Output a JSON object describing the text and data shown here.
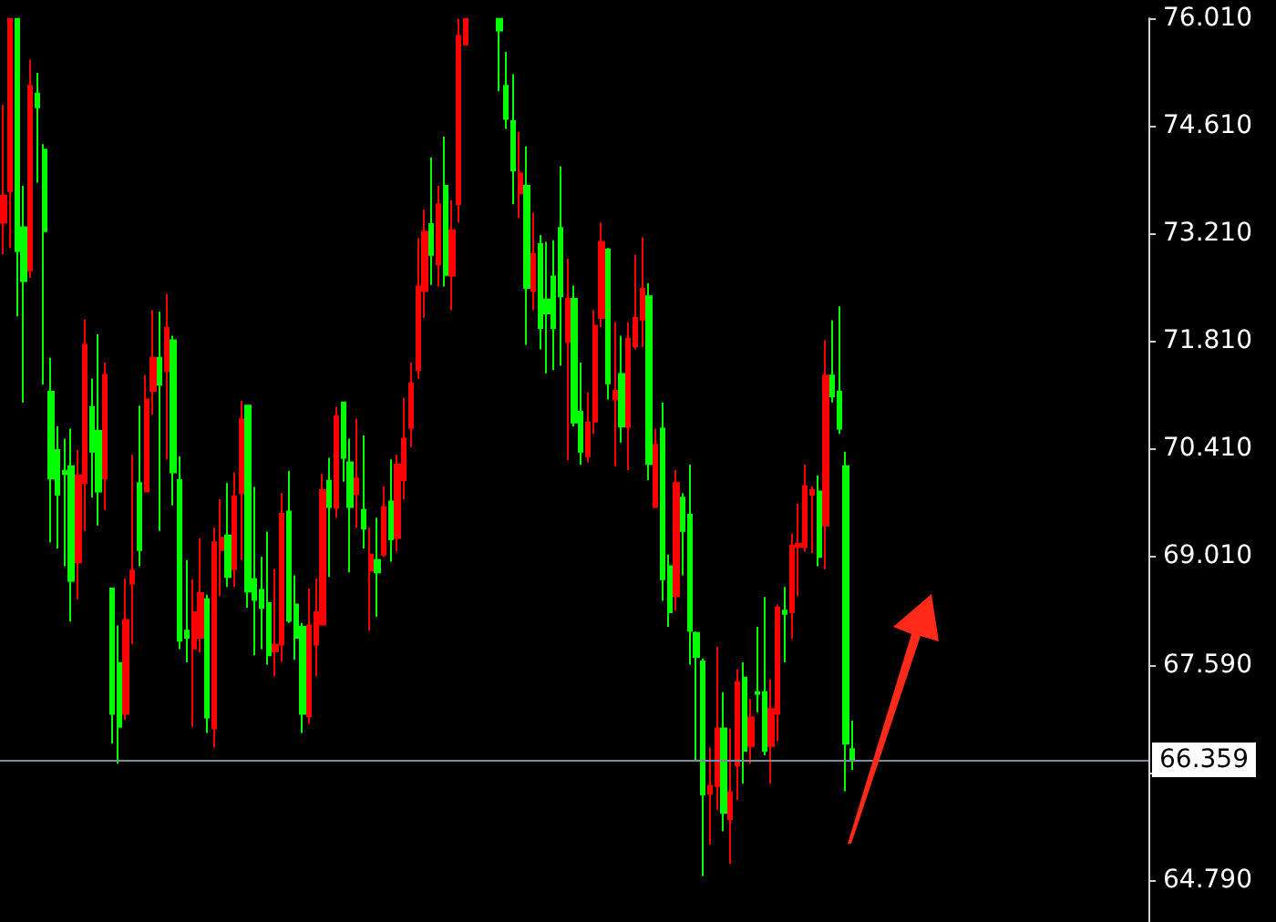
{
  "chart_data": {
    "type": "candlestick",
    "categories": [
      null,
      null,
      null,
      null,
      null,
      null,
      null,
      null,
      null,
      null,
      null,
      null,
      null,
      null,
      null,
      null,
      null,
      null,
      null,
      null,
      null,
      null,
      null,
      null,
      null,
      null,
      null,
      null,
      null,
      null,
      null,
      null,
      null,
      null,
      null,
      null,
      null,
      null,
      null,
      null,
      null,
      null,
      null,
      null,
      null,
      null,
      null,
      null,
      null,
      null,
      null,
      null,
      null,
      null,
      null,
      null,
      null,
      null,
      null,
      null,
      null,
      null,
      null,
      null,
      null,
      null,
      null,
      null,
      null,
      null,
      null,
      null,
      null,
      null,
      null,
      null,
      null,
      null,
      null,
      null,
      null,
      null,
      null,
      null,
      null,
      null,
      null,
      null,
      null,
      null,
      null,
      null,
      null,
      null,
      null,
      null,
      null,
      null,
      null,
      null,
      null,
      null,
      null,
      null,
      null,
      null,
      null,
      null,
      null,
      null,
      null,
      null,
      null,
      null,
      null,
      null,
      null,
      null,
      null,
      null,
      null,
      null,
      null,
      null,
      null,
      null,
      null,
      null,
      null,
      null,
      null,
      null,
      null,
      null,
      null,
      null,
      null,
      null,
      null,
      null,
      null,
      null,
      null,
      null,
      null,
      null,
      null,
      null,
      null,
      null,
      null,
      null,
      null,
      null,
      null,
      null,
      null,
      null,
      null,
      null,
      null,
      null,
      null,
      null,
      null,
      null,
      null,
      null,
      null
    ],
    "ohlc": [
      [
        73.35,
        74.88,
        72.94,
        73.7
      ],
      [
        73.76,
        76.0,
        73.02,
        76.0
      ],
      [
        76.0,
        76.0,
        72.13,
        72.98
      ],
      [
        73.29,
        73.83,
        71.01,
        72.59
      ],
      [
        72.73,
        75.47,
        72.63,
        75.13
      ],
      [
        75.03,
        75.3,
        73.87,
        74.85
      ],
      [
        74.3,
        74.37,
        71.24,
        73.24
      ],
      [
        71.15,
        71.59,
        69.19,
        70.02
      ],
      [
        70.39,
        70.7,
        69.11,
        69.81
      ],
      [
        70.12,
        70.54,
        68.88,
        70.08
      ],
      [
        70.18,
        70.67,
        68.16,
        68.69
      ],
      [
        68.93,
        70.39,
        68.45,
        70.06
      ],
      [
        69.96,
        72.09,
        69.34,
        71.76
      ],
      [
        70.95,
        71.32,
        69.77,
        70.37
      ],
      [
        70.64,
        71.9,
        69.41,
        69.85
      ],
      [
        70.02,
        71.53,
        69.61,
        71.37
      ],
      [
        68.59,
        68.59,
        66.57,
        66.96
      ],
      [
        67.62,
        68.11,
        66.31,
        66.79
      ],
      [
        66.96,
        68.72,
        66.88,
        68.18
      ],
      [
        68.65,
        70.33,
        67.87,
        68.82
      ],
      [
        69.96,
        70.97,
        68.88,
        69.09
      ],
      [
        69.85,
        71.37,
        69.85,
        71.05
      ],
      [
        71.16,
        72.21,
        70.85,
        71.59
      ],
      [
        71.59,
        72.19,
        69.34,
        71.24
      ],
      [
        71.42,
        72.42,
        70.27,
        71.98
      ],
      [
        71.82,
        71.88,
        69.67,
        70.1
      ],
      [
        70.0,
        70.31,
        67.8,
        67.91
      ],
      [
        68.04,
        68.96,
        67.63,
        67.95
      ],
      [
        67.81,
        68.71,
        66.79,
        68.28
      ],
      [
        67.95,
        69.24,
        67.76,
        68.53
      ],
      [
        68.45,
        68.51,
        66.71,
        66.91
      ],
      [
        66.77,
        69.38,
        66.52,
        69.19
      ],
      [
        69.09,
        69.75,
        68.49,
        69.25
      ],
      [
        69.28,
        69.96,
        68.61,
        68.74
      ],
      [
        68.84,
        70.1,
        68.61,
        69.79
      ],
      [
        69.83,
        71.03,
        68.96,
        70.79
      ],
      [
        70.97,
        70.98,
        68.34,
        68.55
      ],
      [
        68.71,
        69.91,
        67.72,
        68.44
      ],
      [
        68.57,
        69.0,
        67.8,
        68.34
      ],
      [
        68.4,
        69.33,
        67.6,
        67.72
      ],
      [
        67.77,
        68.84,
        67.45,
        67.86
      ],
      [
        67.86,
        69.83,
        67.64,
        69.56
      ],
      [
        69.59,
        70.12,
        68.14,
        68.17
      ],
      [
        68.38,
        68.76,
        67.66,
        67.95
      ],
      [
        68.09,
        68.14,
        66.71,
        66.96
      ],
      [
        66.93,
        68.59,
        66.83,
        68.11
      ],
      [
        67.86,
        68.72,
        67.45,
        68.28
      ],
      [
        68.12,
        70.08,
        68.12,
        69.87
      ],
      [
        69.99,
        70.29,
        68.74,
        69.65
      ],
      [
        69.64,
        70.95,
        69.51,
        70.83
      ],
      [
        71.01,
        71.02,
        69.98,
        70.29
      ],
      [
        70.23,
        70.54,
        68.8,
        69.65
      ],
      [
        69.82,
        70.8,
        69.38,
        70.02
      ],
      [
        69.61,
        70.58,
        69.11,
        69.37
      ],
      [
        68.82,
        69.38,
        68.04,
        69.03
      ],
      [
        68.96,
        69.51,
        68.22,
        68.8
      ],
      [
        69.03,
        69.92,
        69.0,
        69.65
      ],
      [
        69.72,
        70.27,
        68.94,
        69.23
      ],
      [
        69.25,
        70.33,
        69.07,
        70.2
      ],
      [
        70.0,
        71.07,
        69.75,
        70.54
      ],
      [
        70.68,
        71.53,
        70.43,
        71.26
      ],
      [
        71.43,
        73.15,
        71.32,
        72.52
      ],
      [
        72.46,
        73.52,
        72.11,
        73.23
      ],
      [
        73.33,
        74.2,
        72.54,
        72.93
      ],
      [
        72.81,
        73.83,
        72.52,
        73.59
      ],
      [
        73.83,
        74.47,
        72.52,
        72.67
      ],
      [
        72.66,
        73.64,
        72.21,
        73.25
      ],
      [
        73.59,
        76.0,
        73.35,
        75.78
      ],
      [
        75.67,
        76.0,
        75.67,
        76.0
      ],
      null,
      null,
      null,
      null,
      [
        76.0,
        76.0,
        75.06,
        75.85
      ],
      [
        75.13,
        75.57,
        74.57,
        74.7
      ],
      [
        74.67,
        75.28,
        73.59,
        74.03
      ],
      [
        73.73,
        74.53,
        73.41,
        73.99
      ],
      [
        73.83,
        74.34,
        71.76,
        72.5
      ],
      [
        72.46,
        73.48,
        72.21,
        72.94
      ],
      [
        73.07,
        73.19,
        71.7,
        71.98
      ],
      [
        72.35,
        73.1,
        71.39,
        72.17
      ],
      [
        72.65,
        73.12,
        71.43,
        71.98
      ],
      [
        73.28,
        74.08,
        71.49,
        72.39
      ],
      [
        71.8,
        72.88,
        70.26,
        72.36
      ],
      [
        72.36,
        72.53,
        70.7,
        70.75
      ],
      [
        70.89,
        71.53,
        70.2,
        70.37
      ],
      [
        70.31,
        71.14,
        70.23,
        70.75
      ],
      [
        70.76,
        72.21,
        70.6,
        72.01
      ],
      [
        72.11,
        73.35,
        71.99,
        73.1
      ],
      [
        73.0,
        73.02,
        71.05,
        71.26
      ],
      [
        71.05,
        72.05,
        70.18,
        71.16
      ],
      [
        71.38,
        71.88,
        70.49,
        70.7
      ],
      [
        70.69,
        72.05,
        70.13,
        71.84
      ],
      [
        71.74,
        72.93,
        71.7,
        72.11
      ],
      [
        72.09,
        73.16,
        71.73,
        72.49
      ],
      [
        72.39,
        72.56,
        70.0,
        70.21
      ],
      [
        69.65,
        70.67,
        69.65,
        70.46
      ],
      [
        70.67,
        71.01,
        68.43,
        68.71
      ],
      [
        68.88,
        69.03,
        68.09,
        68.28
      ],
      [
        68.49,
        70.13,
        68.3,
        69.96
      ],
      [
        69.77,
        69.83,
        68.76,
        69.34
      ],
      [
        69.55,
        70.2,
        67.6,
        68.04
      ],
      [
        68.01,
        68.03,
        66.36,
        67.7
      ],
      [
        67.64,
        67.68,
        64.85,
        65.91
      ],
      [
        65.92,
        66.52,
        65.26,
        66.02
      ],
      [
        66.02,
        67.83,
        65.71,
        66.77
      ],
      [
        66.77,
        67.24,
        65.43,
        65.67
      ],
      [
        65.59,
        66.77,
        65.01,
        65.94
      ],
      [
        66.29,
        67.54,
        65.84,
        67.37
      ],
      [
        67.43,
        67.63,
        66.05,
        66.48
      ],
      [
        66.54,
        67.15,
        66.31,
        66.91
      ],
      [
        67.24,
        68.09,
        66.98,
        67.22
      ],
      [
        67.24,
        68.48,
        66.42,
        66.48
      ],
      [
        66.54,
        67.41,
        66.05,
        67.02
      ],
      [
        66.96,
        68.38,
        66.6,
        68.34
      ],
      [
        68.3,
        68.61,
        67.63,
        68.26
      ],
      [
        68.28,
        69.3,
        67.93,
        69.15
      ],
      [
        69.13,
        69.69,
        68.49,
        69.17
      ],
      [
        69.13,
        70.2,
        69.07,
        69.92
      ],
      [
        69.81,
        69.92,
        69.05,
        69.87
      ],
      [
        69.85,
        70.06,
        68.88,
        69.0
      ],
      [
        69.41,
        71.82,
        68.84,
        71.36
      ],
      [
        71.36,
        72.08,
        71.01,
        71.09
      ],
      [
        71.15,
        72.26,
        70.6,
        70.67
      ],
      [
        70.18,
        70.37,
        65.95,
        66.57
      ],
      [
        66.5,
        66.87,
        66.23,
        66.36
      ],
      null,
      null,
      null,
      null,
      null,
      null,
      null,
      null,
      null,
      null,
      null,
      null,
      null,
      null,
      null,
      null,
      null,
      null,
      null,
      null,
      null,
      null,
      null,
      null,
      null,
      null,
      null,
      null,
      null,
      null,
      null,
      null,
      null,
      null,
      null,
      null,
      null,
      null,
      null,
      null,
      null,
      null,
      null
    ],
    "colors": [
      "#ff0000",
      "#ff0000",
      "#00ff00",
      "#00ff00",
      "#ff0000",
      "#00ff00",
      "#00ff00",
      "#00ff00",
      "#00ff00",
      "#00ff00",
      "#00ff00",
      "#ff0000",
      "#ff0000",
      "#00ff00",
      "#00ff00",
      "#ff0000",
      "#00ff00",
      "#00ff00",
      "#ff0000",
      "#ff0000",
      "#00ff00",
      "#ff0000",
      "#ff0000",
      "#00ff00",
      "#ff0000",
      "#00ff00",
      "#00ff00",
      "#00ff00",
      "#ff0000",
      "#ff0000",
      "#00ff00",
      "#ff0000",
      "#ff0000",
      "#00ff00",
      "#ff0000",
      "#ff0000",
      "#00ff00",
      "#00ff00",
      "#00ff00",
      "#00ff00",
      "#ff0000",
      "#ff0000",
      "#00ff00",
      "#00ff00",
      "#00ff00",
      "#ff0000",
      "#ff0000",
      "#ff0000",
      "#00ff00",
      "#ff0000",
      "#00ff00",
      "#00ff00",
      "#ff0000",
      "#00ff00",
      "#ff0000",
      "#00ff00",
      "#ff0000",
      "#00ff00",
      "#ff0000",
      "#ff0000",
      "#ff0000",
      "#ff0000",
      "#ff0000",
      "#00ff00",
      "#ff0000",
      "#00ff00",
      "#ff0000",
      "#ff0000",
      "#ff0000",
      null,
      null,
      null,
      null,
      "#00ff00",
      "#00ff00",
      "#00ff00",
      "#ff0000",
      "#00ff00",
      "#ff0000",
      "#00ff00",
      "#00ff00",
      "#00ff00",
      "#00ff00",
      "#ff0000",
      "#00ff00",
      "#00ff00",
      "#ff0000",
      "#ff0000",
      "#ff0000",
      "#00ff00",
      "#ff0000",
      "#00ff00",
      "#ff0000",
      "#ff0000",
      "#ff0000",
      "#00ff00",
      "#ff0000",
      "#00ff00",
      "#00ff00",
      "#ff0000",
      "#00ff00",
      "#00ff00",
      "#00ff00",
      "#00ff00",
      "#ff0000",
      "#ff0000",
      "#00ff00",
      "#ff0000",
      "#ff0000",
      "#00ff00",
      "#ff0000",
      "#00ff00",
      "#00ff00",
      "#ff0000",
      "#ff0000",
      "#00ff00",
      "#ff0000",
      "#ff0000",
      "#ff0000",
      "#ff0000",
      "#00ff00",
      "#ff0000",
      "#00ff00",
      "#00ff00",
      "#00ff00",
      "#00ff00",
      null,
      null,
      null,
      null,
      null,
      null,
      null,
      null,
      null,
      null,
      null,
      null,
      null,
      null,
      null,
      null,
      null,
      null,
      null,
      null,
      null,
      null,
      null,
      null,
      null,
      null,
      null,
      null,
      null,
      null,
      null,
      null,
      null,
      null,
      null,
      null,
      null,
      null,
      null,
      null,
      null,
      null,
      null
    ],
    "ylim": [
      64.25,
      76.01
    ],
    "yticks": [
      {
        "value": 64.79,
        "label": "64.790"
      },
      {
        "value": 66.19,
        "label": null
      },
      {
        "value": 67.59,
        "label": "67.590"
      },
      {
        "value": 69.01,
        "label": "69.010"
      },
      {
        "value": 70.41,
        "label": "70.410"
      },
      {
        "value": 71.81,
        "label": "71.810"
      },
      {
        "value": 73.21,
        "label": "73.210"
      },
      {
        "value": 74.61,
        "label": "74.610"
      },
      {
        "value": 76.01,
        "label": "76.010"
      }
    ],
    "ref_lines": [
      {
        "axis": "y",
        "value": 66.359,
        "label": "66.359",
        "color": "#7f8c99"
      }
    ],
    "grid": false,
    "tick_labels": "y"
  }
}
